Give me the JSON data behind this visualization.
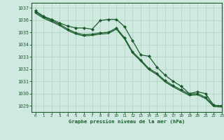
{
  "title": "Graphe pression niveau de la mer (hPa)",
  "background_color": "#cfe8e0",
  "grid_color": "#b0d0c0",
  "line_color": "#1a5c2a",
  "marker_color": "#1a5c2a",
  "xlim": [
    -0.5,
    23
  ],
  "ylim": [
    1028.5,
    1037.4
  ],
  "yticks": [
    1029,
    1030,
    1031,
    1032,
    1033,
    1034,
    1035,
    1036,
    1037
  ],
  "xticks": [
    0,
    1,
    2,
    3,
    4,
    5,
    6,
    7,
    8,
    9,
    10,
    11,
    12,
    13,
    14,
    15,
    16,
    17,
    18,
    19,
    20,
    21,
    22,
    23
  ],
  "series1_x": [
    0,
    1,
    2,
    3,
    4,
    5,
    6,
    7,
    8,
    9,
    10,
    11,
    12,
    13,
    14,
    15,
    16,
    17,
    18,
    19,
    20,
    21,
    22,
    23
  ],
  "series1_y": [
    1036.75,
    1036.3,
    1036.05,
    1035.75,
    1035.5,
    1035.35,
    1035.35,
    1035.25,
    1035.95,
    1036.05,
    1036.05,
    1035.45,
    1034.3,
    1033.15,
    1033.05,
    1032.15,
    1031.5,
    1031.0,
    1030.6,
    1030.0,
    1030.15,
    1030.0,
    1029.05,
    1029.0
  ],
  "series2_x": [
    0,
    1,
    2,
    3,
    4,
    5,
    6,
    7,
    8,
    9,
    10,
    11,
    12,
    13,
    14,
    15,
    16,
    17,
    18,
    19,
    20,
    21,
    22,
    23
  ],
  "series2_y": [
    1036.65,
    1036.25,
    1035.95,
    1035.65,
    1035.25,
    1034.95,
    1034.8,
    1034.85,
    1034.95,
    1035.0,
    1035.35,
    1034.55,
    1033.4,
    1032.75,
    1032.05,
    1031.65,
    1031.05,
    1030.65,
    1030.3,
    1029.95,
    1030.0,
    1029.7,
    1029.05,
    1029.0
  ],
  "series3_x": [
    0,
    1,
    2,
    3,
    4,
    5,
    6,
    7,
    8,
    9,
    10,
    11,
    12,
    13,
    14,
    15,
    16,
    17,
    18,
    19,
    20,
    21,
    22,
    23
  ],
  "series3_y": [
    1036.55,
    1036.15,
    1035.85,
    1035.55,
    1035.15,
    1034.85,
    1034.7,
    1034.75,
    1034.85,
    1034.9,
    1035.25,
    1034.45,
    1033.3,
    1032.65,
    1031.95,
    1031.55,
    1030.95,
    1030.55,
    1030.2,
    1029.85,
    1029.9,
    1029.6,
    1028.95,
    1028.9
  ]
}
